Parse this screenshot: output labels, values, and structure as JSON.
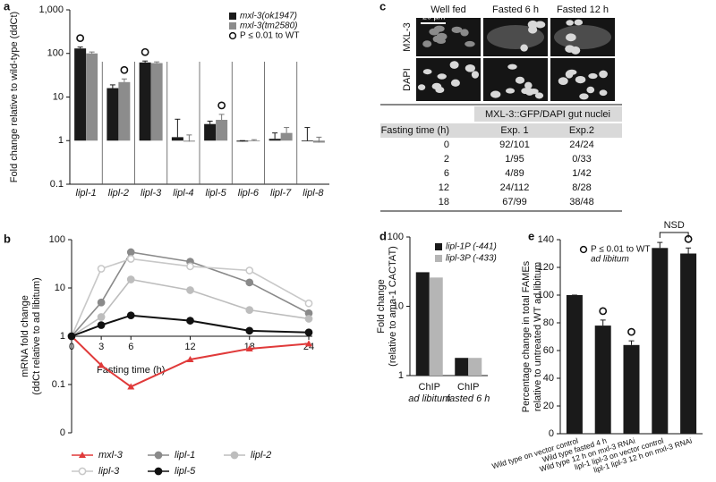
{
  "chart_data": [
    {
      "label": "a",
      "type": "bar",
      "ylabel": "Fold change relative to wild-type (ddCt)",
      "log_scale": true,
      "ylim": [
        0.1,
        1000
      ],
      "yticks": [
        0.1,
        1,
        10,
        100,
        {
          "value": 1000,
          "label": "1,000"
        }
      ],
      "categories": [
        "lipl-1",
        "lipl-2",
        "lipl-3",
        "lipl-4",
        "lipl-5",
        "lipl-6",
        "lipl-7",
        "lipl-8"
      ],
      "series": [
        {
          "name": "mxl-3(ok1947)",
          "color": "#1a1a1a",
          "values": [
            130,
            16,
            62,
            1.2,
            2.4,
            0.95,
            1.1,
            1.0
          ],
          "errors": [
            10,
            3,
            5,
            1.9,
            0.4,
            0.05,
            0.4,
            1.0
          ],
          "significant": [
            true,
            false,
            true,
            false,
            false,
            false,
            false,
            false
          ]
        },
        {
          "name": "mxl-3(tm2580)",
          "color": "#8c8c8c",
          "values": [
            100,
            22,
            60,
            0.95,
            3.0,
            1.0,
            1.5,
            0.9
          ],
          "errors": [
            8,
            4,
            4,
            0.4,
            1.0,
            0.05,
            0.5,
            0.3
          ],
          "significant": [
            false,
            true,
            false,
            false,
            true,
            false,
            false,
            false
          ]
        }
      ],
      "significance_label": "P ≤ 0.01 to WT"
    },
    {
      "label": "b",
      "type": "line",
      "ylabel": [
        "mRNA fold change",
        "(ddCt relative to ad libitum)"
      ],
      "xlabel": "Fasting time (h)",
      "log_scale": true,
      "ylim": [
        0.01,
        100
      ],
      "yticks": [
        {
          "value": 0.01,
          "label": "0"
        },
        0.1,
        1,
        10,
        100
      ],
      "xlim": [
        0,
        24
      ],
      "xticks": [
        0,
        3,
        6,
        12,
        18,
        24
      ],
      "x": [
        0,
        3,
        6,
        12,
        18,
        24
      ],
      "series": [
        {
          "name": "mxl-3",
          "color": "#e03a3a",
          "marker": "triangle",
          "values": [
            1,
            0.25,
            0.09,
            0.33,
            0.55,
            0.7
          ]
        },
        {
          "name": "lipl-1",
          "color": "#8a8a8a",
          "marker": "circle",
          "values": [
            1,
            5,
            55,
            35,
            13,
            3
          ]
        },
        {
          "name": "lipl-2",
          "color": "#bdbdbd",
          "marker": "circle",
          "values": [
            1,
            2.5,
            15,
            9,
            3.5,
            2.3
          ]
        },
        {
          "name": "lipl-3",
          "color": "#c8c8c8",
          "marker": "open-circle",
          "values": [
            1,
            25,
            40,
            28,
            23,
            4.8
          ]
        },
        {
          "name": "lipl-5",
          "color": "#111111",
          "marker": "circle",
          "values": [
            1,
            1.7,
            2.7,
            2.1,
            1.3,
            1.2
          ]
        }
      ]
    },
    {
      "label": "d",
      "type": "bar",
      "ylabel": [
        "Fold change",
        "(relative to ama-1 CACTAT)"
      ],
      "log_scale": true,
      "ylim": [
        1,
        100
      ],
      "yticks": [
        1,
        10,
        100
      ],
      "categories": [
        [
          "ChIP",
          "ad libitum"
        ],
        [
          "ChIP",
          "fasted 6 h"
        ]
      ],
      "series": [
        {
          "name": "lipl-1P (-441)",
          "color": "#1a1a1a",
          "values": [
            31,
            1.8
          ]
        },
        {
          "name": "lipl-3P (-433)",
          "color": "#b5b5b5",
          "values": [
            26,
            1.8
          ]
        }
      ]
    },
    {
      "label": "e",
      "type": "bar",
      "ylabel": [
        "Percentage change in total FAMEs",
        "relative to untreated WT ad libitum"
      ],
      "ylim": [
        0,
        140
      ],
      "yticks": [
        0,
        20,
        40,
        60,
        80,
        100,
        120,
        140
      ],
      "categories": [
        "Wild type on vector control",
        "Wild type fasted 4 h",
        "Wild type 12 h on mxl-3 RNAi",
        "lipl-1 lipl-3 on vector control",
        "lipl-1 lipl-3 12 h on mxl-3 RNAi"
      ],
      "values": [
        100,
        78,
        64,
        134,
        130
      ],
      "errors": [
        0,
        4,
        3,
        4,
        4
      ],
      "color": "#1a1a1a",
      "significant": [
        false,
        true,
        true,
        false,
        true
      ],
      "significance_label": [
        "P ≤ 0.01 to WT",
        "ad libitum"
      ],
      "annotation": "NSD"
    }
  ],
  "panel_c": {
    "label": "c",
    "columns": [
      "Well fed",
      "Fasted 6 h",
      "Fasted 12 h"
    ],
    "rows": [
      "MXL-3",
      "DAPI"
    ],
    "scale_bar": "20 µm",
    "table": {
      "title": "MXL-3::GFP/DAPI gut nuclei",
      "header": [
        "Fasting time (h)",
        "Exp. 1",
        "Exp.2"
      ],
      "rows": [
        [
          0,
          "92/101",
          "24/24"
        ],
        [
          2,
          "1/95",
          "0/33"
        ],
        [
          6,
          "4/89",
          "1/42"
        ],
        [
          12,
          "24/112",
          "8/28"
        ],
        [
          18,
          "67/99",
          "38/48"
        ]
      ]
    }
  }
}
